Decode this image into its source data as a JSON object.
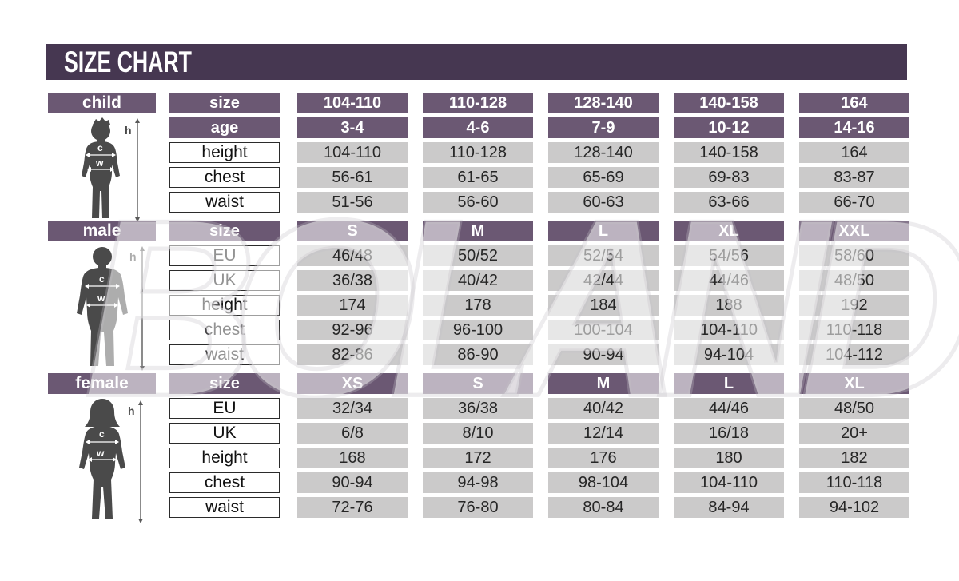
{
  "title": "SIZE CHART",
  "watermark": "BOLAND",
  "figure_labels": {
    "height": "h",
    "chest": "c",
    "waist": "w"
  },
  "colors": {
    "title_bar": "#463751",
    "header_purple": "#6b5873",
    "cell_gray": "#cbcaca",
    "figure_gray": "#4a4a4a",
    "text_dark": "#262626"
  },
  "chart_data": {
    "type": "table",
    "title": "SIZE CHART",
    "sections": [
      {
        "name": "child",
        "rows": [
          {
            "type": "header",
            "label": "size",
            "values": [
              "104-110",
              "110-128",
              "128-140",
              "140-158",
              "164"
            ]
          },
          {
            "type": "header",
            "label": "age",
            "values": [
              "3-4",
              "4-6",
              "7-9",
              "10-12",
              "14-16"
            ]
          },
          {
            "type": "data",
            "label": "height",
            "values": [
              "104-110",
              "110-128",
              "128-140",
              "140-158",
              "164"
            ]
          },
          {
            "type": "data",
            "label": "chest",
            "values": [
              "56-61",
              "61-65",
              "65-69",
              "69-83",
              "83-87"
            ]
          },
          {
            "type": "data",
            "label": "waist",
            "values": [
              "51-56",
              "56-60",
              "60-63",
              "63-66",
              "66-70"
            ]
          }
        ]
      },
      {
        "name": "male",
        "rows": [
          {
            "type": "header",
            "label": "size",
            "values": [
              "S",
              "M",
              "L",
              "XL",
              "XXL"
            ]
          },
          {
            "type": "data",
            "label": "EU",
            "values": [
              "46/48",
              "50/52",
              "52/54",
              "54/56",
              "58/60"
            ]
          },
          {
            "type": "data",
            "label": "UK",
            "values": [
              "36/38",
              "40/42",
              "42/44",
              "44/46",
              "48/50"
            ]
          },
          {
            "type": "data",
            "label": "height",
            "values": [
              "174",
              "178",
              "184",
              "188",
              "192"
            ]
          },
          {
            "type": "data",
            "label": "chest",
            "values": [
              "92-96",
              "96-100",
              "100-104",
              "104-110",
              "110-118"
            ]
          },
          {
            "type": "data",
            "label": "waist",
            "values": [
              "82-86",
              "86-90",
              "90-94",
              "94-104",
              "104-112"
            ]
          }
        ]
      },
      {
        "name": "female",
        "rows": [
          {
            "type": "header",
            "label": "size",
            "values": [
              "XS",
              "S",
              "M",
              "L",
              "XL"
            ]
          },
          {
            "type": "data",
            "label": "EU",
            "values": [
              "32/34",
              "36/38",
              "40/42",
              "44/46",
              "48/50"
            ]
          },
          {
            "type": "data",
            "label": "UK",
            "values": [
              "6/8",
              "8/10",
              "12/14",
              "16/18",
              "20+"
            ]
          },
          {
            "type": "data",
            "label": "height",
            "values": [
              "168",
              "172",
              "176",
              "180",
              "182"
            ]
          },
          {
            "type": "data",
            "label": "chest",
            "values": [
              "90-94",
              "94-98",
              "98-104",
              "104-110",
              "110-118"
            ]
          },
          {
            "type": "data",
            "label": "waist",
            "values": [
              "72-76",
              "76-80",
              "80-84",
              "84-94",
              "94-102"
            ]
          }
        ]
      }
    ]
  }
}
